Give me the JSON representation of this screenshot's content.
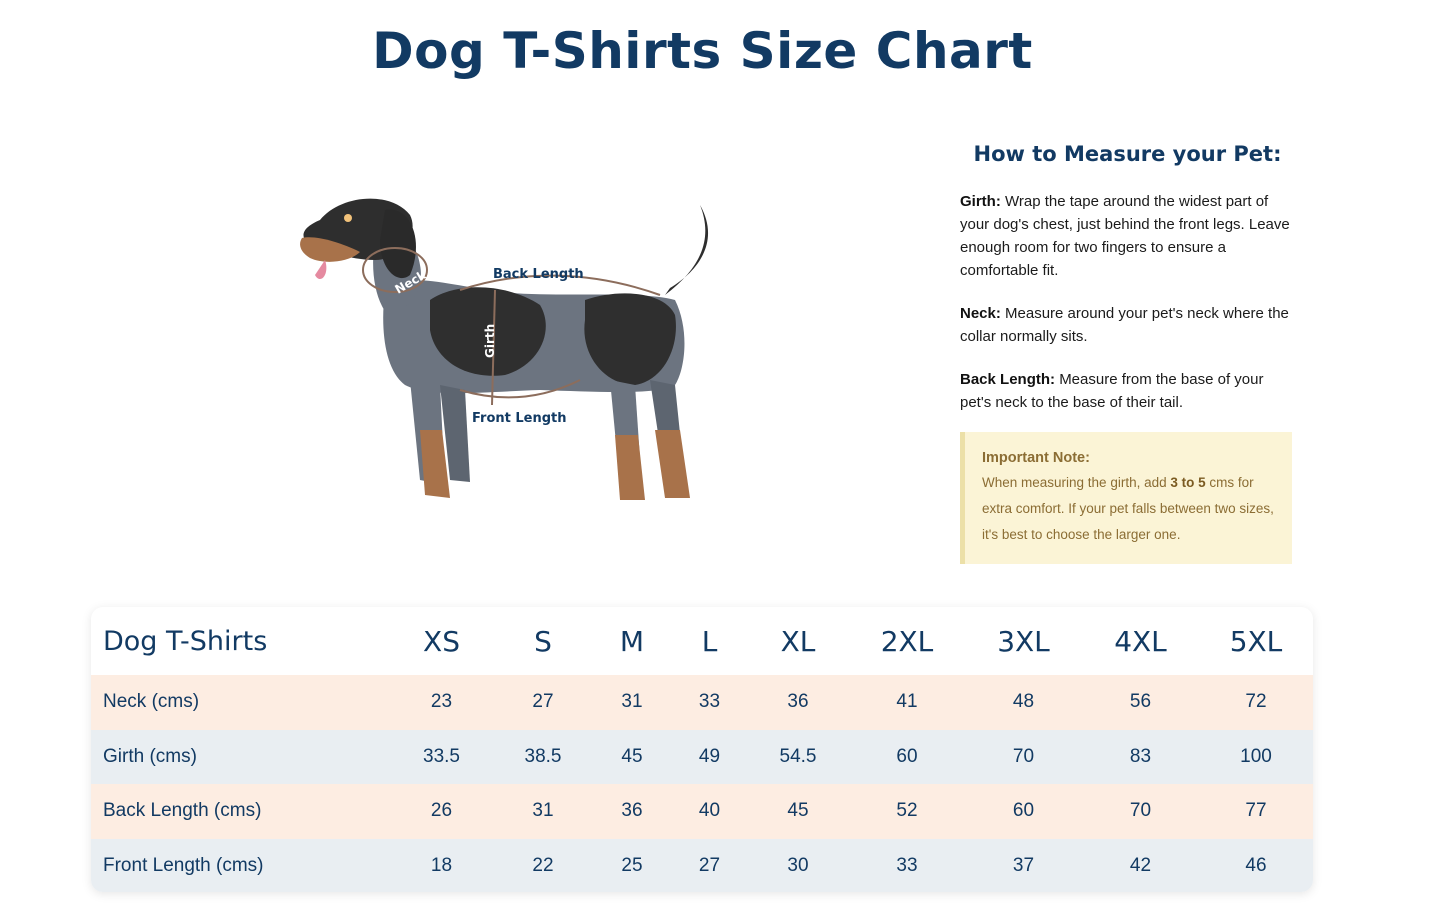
{
  "title": "Dog T-Shirts Size Chart",
  "illustration": {
    "labels": {
      "neck": "Neck",
      "girth": "Girth",
      "back_length": "Back Length",
      "front_length": "Front Length"
    }
  },
  "measure": {
    "heading": "How to Measure your Pet:",
    "items": [
      {
        "term": "Girth:",
        "text": "Wrap the tape around the widest part of your dog's chest, just behind the front legs. Leave enough room for two fingers to ensure a comfortable fit."
      },
      {
        "term": "Neck:",
        "text": "Measure around your pet's neck where the collar normally sits."
      },
      {
        "term": "Back Length:",
        "text": "Measure from the base of your pet's neck to the base of their tail."
      }
    ]
  },
  "note": {
    "title": "Important Note:",
    "text_before": "When measuring the girth, add ",
    "bold": "3 to 5",
    "text_after": " cms for extra comfort. If your pet falls between two sizes, it's best to choose the larger one."
  },
  "table": {
    "header": [
      "Dog T-Shirts",
      "XS",
      "S",
      "M",
      "L",
      "XL",
      "2XL",
      "3XL",
      "4XL",
      "5XL"
    ],
    "rows": [
      [
        "Neck (cms)",
        "23",
        "27",
        "31",
        "33",
        "36",
        "41",
        "48",
        "56",
        "72"
      ],
      [
        "Girth (cms)",
        "33.5",
        "38.5",
        "45",
        "49",
        "54.5",
        "60",
        "70",
        "83",
        "100"
      ],
      [
        "Back Length (cms)",
        "26",
        "31",
        "36",
        "40",
        "45",
        "52",
        "60",
        "70",
        "77"
      ],
      [
        "Front Length (cms)",
        "18",
        "22",
        "25",
        "27",
        "30",
        "33",
        "37",
        "42",
        "46"
      ]
    ]
  },
  "colors": {
    "title": "#123a63",
    "row_peach": "#fdede2",
    "row_blue": "#e9eef2",
    "note_bg": "#fbf4d6",
    "note_text": "#8b6d34"
  }
}
